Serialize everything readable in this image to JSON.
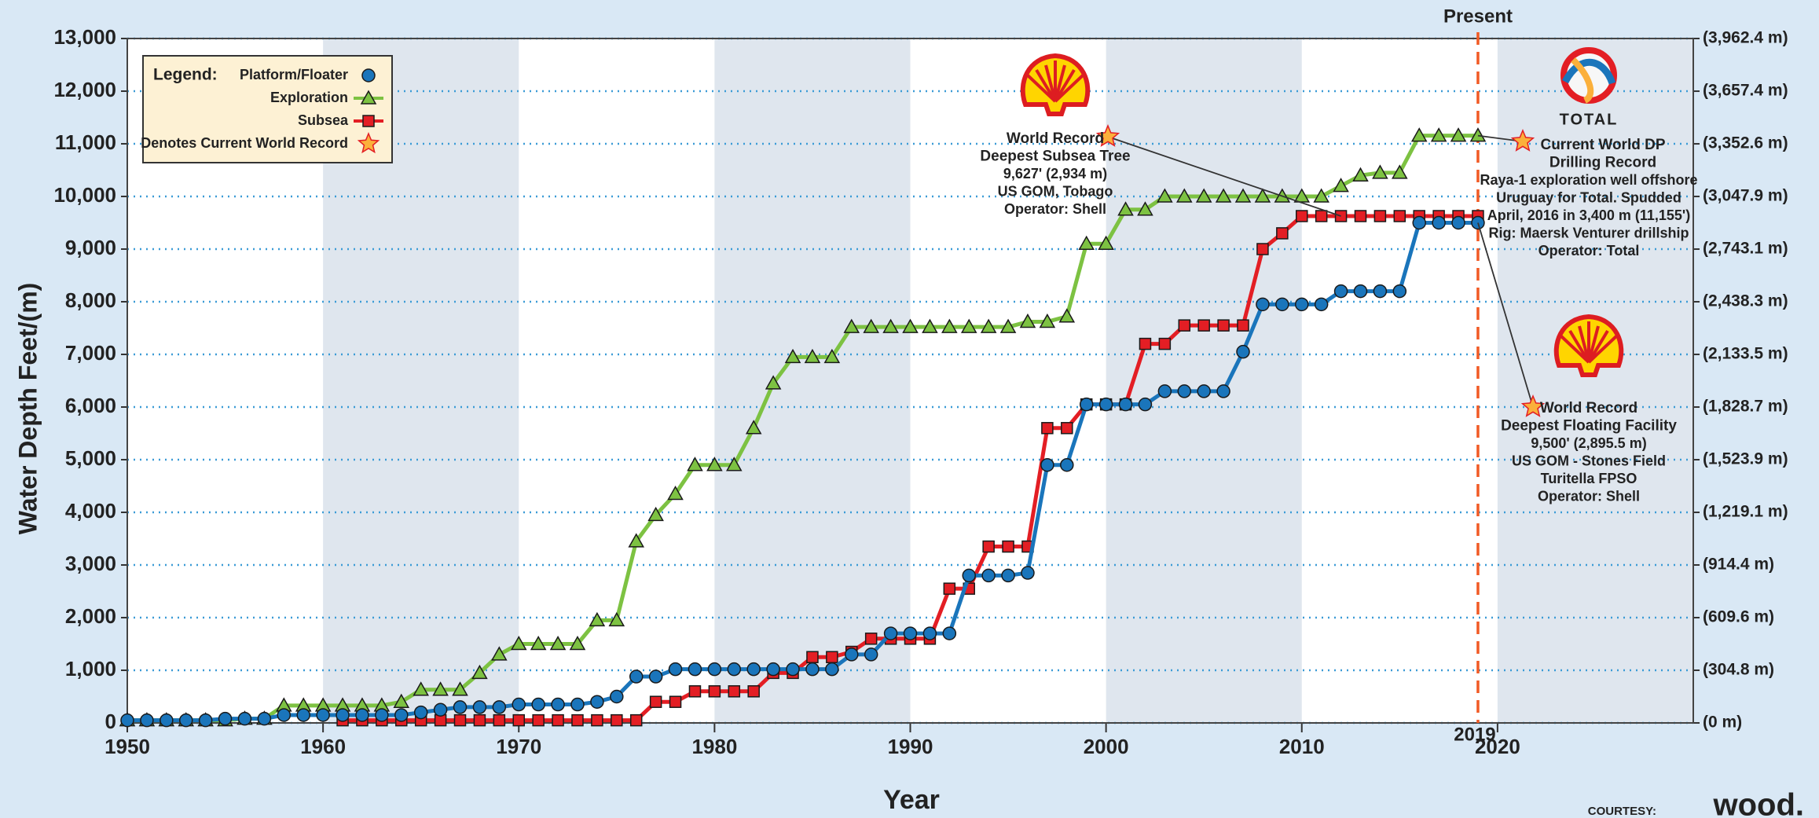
{
  "chart_data": {
    "type": "line",
    "x_label": "Year",
    "y_label": "Water Depth Feet/(m)",
    "x": [
      1950,
      1951,
      1952,
      1953,
      1954,
      1955,
      1956,
      1957,
      1958,
      1959,
      1960,
      1961,
      1962,
      1963,
      1964,
      1965,
      1966,
      1967,
      1968,
      1969,
      1970,
      1971,
      1972,
      1973,
      1974,
      1975,
      1976,
      1977,
      1978,
      1979,
      1980,
      1981,
      1982,
      1983,
      1984,
      1985,
      1986,
      1987,
      1988,
      1989,
      1990,
      1991,
      1992,
      1993,
      1994,
      1995,
      1996,
      1997,
      1998,
      1999,
      2000,
      2001,
      2002,
      2003,
      2004,
      2005,
      2006,
      2007,
      2008,
      2009,
      2010,
      2011,
      2012,
      2013,
      2014,
      2015,
      2016,
      2017,
      2018,
      2019
    ],
    "series": [
      {
        "name": "Platform/Floater",
        "color": "#1a75bb",
        "marker": "circle",
        "values": [
          50,
          50,
          50,
          50,
          50,
          80,
          80,
          80,
          150,
          150,
          150,
          150,
          150,
          150,
          150,
          200,
          250,
          300,
          300,
          300,
          350,
          350,
          350,
          350,
          400,
          500,
          880,
          880,
          1020,
          1020,
          1020,
          1020,
          1020,
          1020,
          1020,
          1020,
          1020,
          1300,
          1300,
          1700,
          1700,
          1700,
          1700,
          2800,
          2800,
          2800,
          2850,
          4900,
          4900,
          6050,
          6050,
          6050,
          6050,
          6300,
          6300,
          6300,
          6300,
          7050,
          7950,
          7950,
          7950,
          7950,
          8200,
          8200,
          8200,
          8200,
          9500,
          9500,
          9500,
          9500
        ]
      },
      {
        "name": "Exploration",
        "color": "#7dc242",
        "marker": "triangle",
        "values": [
          50,
          50,
          50,
          50,
          50,
          50,
          80,
          80,
          330,
          330,
          330,
          330,
          330,
          330,
          400,
          630,
          630,
          630,
          950,
          1300,
          1500,
          1500,
          1500,
          1500,
          1950,
          1950,
          3450,
          3950,
          4350,
          4900,
          4900,
          4900,
          5600,
          6450,
          6950,
          6950,
          6950,
          7520,
          7520,
          7520,
          7520,
          7520,
          7520,
          7520,
          7520,
          7520,
          7620,
          7620,
          7720,
          9100,
          9100,
          9750,
          9750,
          10000,
          10000,
          10000,
          10000,
          10000,
          10000,
          10000,
          10000,
          10000,
          10200,
          10400,
          10450,
          10450,
          11155,
          11155,
          11155,
          11155
        ]
      },
      {
        "name": "Subsea",
        "color": "#e31e24",
        "marker": "square",
        "values": [
          null,
          null,
          null,
          null,
          null,
          null,
          null,
          null,
          null,
          null,
          null,
          50,
          50,
          50,
          50,
          50,
          50,
          50,
          50,
          50,
          50,
          50,
          50,
          50,
          50,
          50,
          50,
          400,
          400,
          600,
          600,
          600,
          600,
          950,
          950,
          1250,
          1250,
          1350,
          1600,
          1600,
          1600,
          1600,
          2550,
          2550,
          3350,
          3350,
          3350,
          5600,
          5600,
          6050,
          6050,
          6050,
          7200,
          7200,
          7550,
          7550,
          7550,
          7550,
          9000,
          9300,
          9627,
          9627,
          9627,
          9627,
          9627,
          9627,
          9627,
          9627,
          9627,
          9627
        ]
      }
    ],
    "xlim": [
      1950,
      2030
    ],
    "xticks": [
      1950,
      1960,
      1970,
      1980,
      1990,
      2000,
      2010,
      2020
    ],
    "ylim": [
      0,
      13000
    ],
    "yticks": [
      0,
      {
        "value": 1000,
        "label": "1,000"
      },
      {
        "value": 2000,
        "label": "2,000"
      },
      {
        "value": 3000,
        "label": "3,000"
      },
      {
        "value": 4000,
        "label": "4,000"
      },
      {
        "value": 5000,
        "label": "5,000"
      },
      {
        "value": 6000,
        "label": "6,000"
      },
      {
        "value": 7000,
        "label": "7,000"
      },
      {
        "value": 8000,
        "label": "8,000"
      },
      {
        "value": 9000,
        "label": "9,000"
      },
      {
        "value": 10000,
        "label": "10,000"
      },
      {
        "value": 11000,
        "label": "11,000"
      },
      {
        "value": 12000,
        "label": "12,000"
      },
      {
        "value": 13000,
        "label": "13,000"
      }
    ],
    "y2lim": [
      0,
      3962.4
    ],
    "y2ticks": [
      {
        "value": 0,
        "label": "(0 m)"
      },
      {
        "value": 304.8,
        "label": "(304.8 m)"
      },
      {
        "value": 609.6,
        "label": "(609.6 m)"
      },
      {
        "value": 914.4,
        "label": "(914.4 m)"
      },
      {
        "value": 1219.1,
        "label": "(1,219.1 m)"
      },
      {
        "value": 1523.9,
        "label": "(1,523.9 m)"
      },
      {
        "value": 1828.7,
        "label": "(1,828.7 m)"
      },
      {
        "value": 2133.5,
        "label": "(2,133.5 m)"
      },
      {
        "value": 2438.3,
        "label": "(2,438.3 m)"
      },
      {
        "value": 2743.1,
        "label": "(2,743.1 m)"
      },
      {
        "value": 3047.9,
        "label": "(3,047.9 m)"
      },
      {
        "value": 3352.6,
        "label": "(3,352.6 m)"
      },
      {
        "value": 3657.4,
        "label": "(3,657.4 m)"
      },
      {
        "value": 3962.4,
        "label": "(3,962.4 m)"
      }
    ],
    "grid": true,
    "legend_title": "Legend:",
    "legend_note": "Denotes Current World Record",
    "present_label": "Present",
    "present_year": 2019,
    "annotations": [
      {
        "title": [
          "World Record",
          "Deepest Subsea Tree"
        ],
        "text": [
          "9,627' (2,934 m)",
          "US GOM, Tobago",
          "Operator: Shell"
        ]
      },
      {
        "title": [
          "Current World DP",
          "Drilling Record"
        ],
        "text": [
          "Raya-1 exploration well offshore",
          "Uruguay for Total. Spudded",
          "April, 2016 in 3,400 m (11,155')",
          "Rig: Maersk Venturer drillship",
          "Operator: Total"
        ]
      },
      {
        "title": [
          "World Record",
          "Deepest Floating Facility"
        ],
        "text": [
          "9,500' (2,895.5 m)",
          "US GOM - Stones Field",
          "Turitella FPSO",
          "Operator: Shell"
        ]
      }
    ],
    "logo_text": "TOTAL",
    "courtesy": "COURTESY:",
    "courtesy_name": "wood."
  }
}
